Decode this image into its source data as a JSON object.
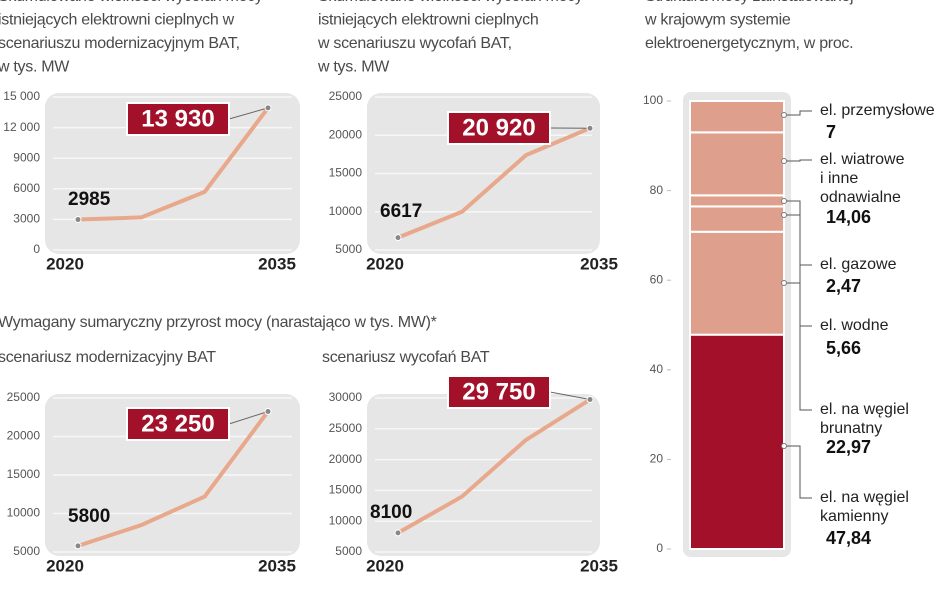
{
  "section_title": "Wymagany sumaryczny przyrost mocy (narastająco w tys. MW)*",
  "chart_data": [
    {
      "type": "line",
      "title": [
        "Skumulowane wielkości wycofań mocy",
        "istniejących elektrowni cieplnych w",
        "scenariuszu modernizacyjnym BAT,",
        "w tys. MW"
      ],
      "x": [
        2020,
        2025,
        2030,
        2035
      ],
      "values": [
        2985,
        3200,
        5700,
        13930
      ],
      "value_labels": [
        "2985",
        null,
        null,
        "13 930"
      ],
      "xlim": [
        2020,
        2035
      ],
      "xticks": [
        2020,
        2035
      ],
      "ylim": [
        0,
        15000
      ],
      "yticks": [
        0,
        3000,
        6000,
        9000,
        {
          "value": 12000,
          "label": "12 000"
        },
        {
          "value": 15000,
          "label": "15 000"
        }
      ],
      "color": "#e8a88c",
      "grid": true
    },
    {
      "type": "line",
      "title": [
        "Skumulowane wielkości wycofań mocy",
        "istniejących elektrowni cieplnych",
        "w scenariuszu wycofań BAT,",
        "w tys. MW"
      ],
      "x": [
        2020,
        2025,
        2030,
        2035
      ],
      "values": [
        6617,
        10000,
        17400,
        20920
      ],
      "value_labels": [
        "6617",
        null,
        null,
        "20 920"
      ],
      "xlim": [
        2020,
        2035
      ],
      "xticks": [
        2020,
        2035
      ],
      "ylim": [
        5000,
        25000
      ],
      "yticks": [
        5000,
        10000,
        15000,
        20000,
        25000
      ],
      "color": "#e8a88c",
      "grid": true
    },
    {
      "type": "line",
      "title": [
        "scenariusz modernizacyjny BAT"
      ],
      "x": [
        2020,
        2025,
        2030,
        2035
      ],
      "values": [
        5800,
        8500,
        12200,
        23250
      ],
      "value_labels": [
        "5800",
        null,
        null,
        "23 250"
      ],
      "xlim": [
        2020,
        2035
      ],
      "xticks": [
        2020,
        2035
      ],
      "ylim": [
        5000,
        25000
      ],
      "yticks": [
        5000,
        10000,
        15000,
        20000,
        25000
      ],
      "color": "#e8a88c",
      "grid": true
    },
    {
      "type": "line",
      "title": [
        "scenariusz wycofań BAT"
      ],
      "x": [
        2020,
        2025,
        2030,
        2035
      ],
      "values": [
        8100,
        14000,
        23200,
        29750
      ],
      "value_labels": [
        "8100",
        null,
        null,
        "29 750"
      ],
      "xlim": [
        2020,
        2035
      ],
      "xticks": [
        2020,
        2035
      ],
      "ylim": [
        5000,
        30000
      ],
      "yticks": [
        5000,
        10000,
        15000,
        20000,
        25000,
        30000
      ],
      "color": "#e8a88c",
      "grid": true
    },
    {
      "type": "stacked_bar",
      "title": [
        "Struktura mocy zainstalowanej",
        "w krajowym systemie",
        "elektroenergetycznym, w proc."
      ],
      "categories": [
        "el. na węgiel\nkamienny",
        "el. na węgiel\nbrunatny",
        "el. wodne",
        "el. gazowe",
        "el. wiatrowe\ni inne\nodnawialne",
        "el. przemysłowe"
      ],
      "values": [
        47.84,
        22.97,
        5.66,
        2.47,
        14.06,
        7
      ],
      "value_labels": [
        "47,84",
        "22,97",
        "5,66",
        "2,47",
        "14,06",
        "7"
      ],
      "colors": [
        "#a3102a",
        "#dea08c",
        "#dea08c",
        "#dea08c",
        "#dea08c",
        "#dea08c"
      ],
      "ylim": [
        0,
        100
      ],
      "yticks": [
        0,
        20,
        40,
        60,
        80,
        100
      ]
    }
  ]
}
